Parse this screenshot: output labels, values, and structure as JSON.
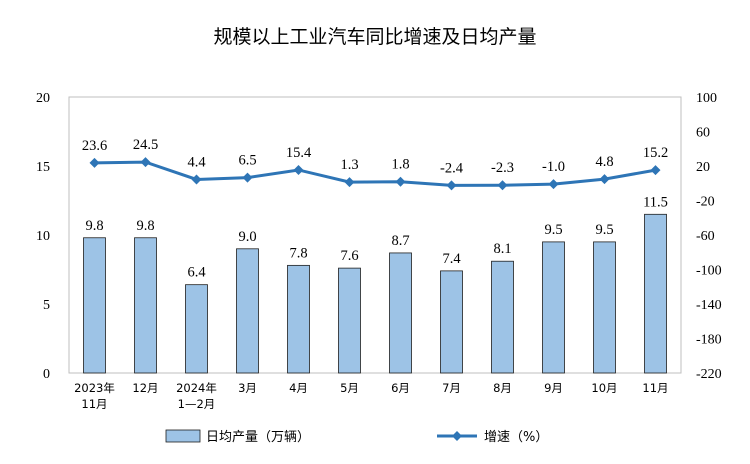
{
  "chart_data": {
    "type": "bar",
    "title": "规模以上工业汽车同比增速及日均产量",
    "categories": [
      [
        "2023年",
        "11月"
      ],
      [
        "12月"
      ],
      [
        "2024年",
        "1—2月"
      ],
      [
        "3月"
      ],
      [
        "4月"
      ],
      [
        "5月"
      ],
      [
        "6月"
      ],
      [
        "7月"
      ],
      [
        "8月"
      ],
      [
        "9月"
      ],
      [
        "10月"
      ],
      [
        "11月"
      ]
    ],
    "series": [
      {
        "name": "日均产量（万辆）",
        "type": "bar",
        "axis": "left",
        "color": "#9DC3E6",
        "values": [
          9.8,
          9.8,
          6.4,
          9.0,
          7.8,
          7.6,
          8.7,
          7.4,
          8.1,
          9.5,
          9.5,
          11.5
        ],
        "labels": [
          "9.8",
          "9.8",
          "6.4",
          "9.0",
          "7.8",
          "7.6",
          "8.7",
          "7.4",
          "8.1",
          "9.5",
          "9.5",
          "11.5"
        ]
      },
      {
        "name": "增速（%）",
        "type": "line",
        "axis": "right",
        "color": "#2E75B6",
        "values": [
          23.6,
          24.5,
          4.4,
          6.5,
          15.4,
          1.3,
          1.8,
          -2.4,
          -2.3,
          -1.0,
          4.8,
          15.2
        ],
        "labels": [
          "23.6",
          "24.5",
          "4.4",
          "6.5",
          "15.4",
          "1.3",
          "1.8",
          "-2.4",
          "-2.3",
          "-1.0",
          "4.8",
          "15.2"
        ]
      }
    ],
    "y_left": {
      "ylim": [
        0,
        20
      ],
      "ticks": [
        "0",
        "5",
        "10",
        "15",
        "20"
      ]
    },
    "y_right": {
      "ylim": [
        -220,
        100
      ],
      "ticks": [
        "100",
        "60",
        "20",
        "-20",
        "-60",
        "-100",
        "-140",
        "-180",
        "-220"
      ]
    },
    "legend_position": "bottom",
    "grid": false
  }
}
